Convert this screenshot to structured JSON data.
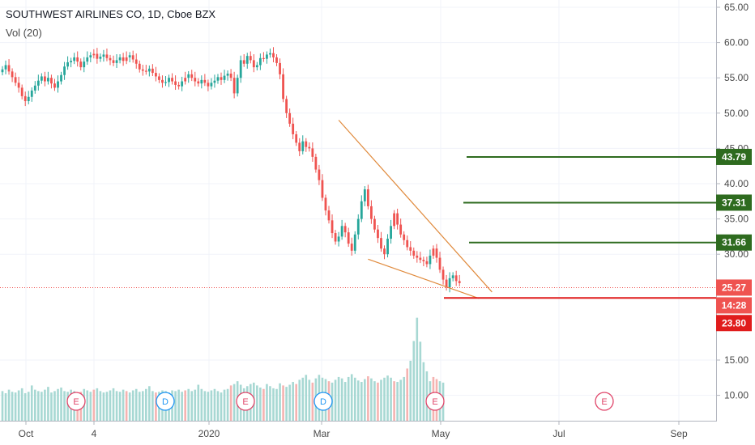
{
  "chart_data": {
    "type": "candlestick",
    "title": "SOUTHWEST AIRLINES CO, 1D, Cboe BZX",
    "subtitle": "Vol (20)",
    "y_ticks": [
      "65.00",
      "60.00",
      "55.00",
      "50.00",
      "45.00",
      "40.00",
      "35.00",
      "30.00",
      "15.00",
      "10.00"
    ],
    "y_tick_values": [
      65,
      60,
      55,
      50,
      45,
      40,
      35,
      30,
      15,
      10
    ],
    "x_ticks": [
      "Oct",
      "4",
      "2020",
      "Mar",
      "May",
      "Jul",
      "Sep"
    ],
    "ylim": [
      6,
      66
    ],
    "price_series": [
      56.2,
      56.8,
      55.9,
      55.1,
      54.3,
      53.6,
      52.4,
      51.7,
      52.3,
      53.2,
      53.9,
      54.6,
      55.2,
      54.5,
      55.0,
      54.2,
      53.6,
      54.5,
      55.4,
      56.6,
      57.2,
      57.4,
      57.9,
      57.3,
      56.5,
      57.3,
      57.9,
      58.2,
      58.4,
      57.7,
      58.0,
      58.3,
      57.8,
      57.5,
      57.1,
      57.5,
      57.9,
      57.4,
      57.9,
      58.2,
      57.6,
      57.0,
      56.2,
      56.0,
      55.9,
      56.3,
      55.7,
      55.2,
      54.7,
      54.3,
      54.4,
      55.0,
      54.5,
      54.0,
      53.8,
      54.5,
      55.0,
      55.5,
      55.0,
      54.5,
      54.2,
      54.7,
      54.3,
      53.8,
      54.3,
      54.6,
      55.1,
      54.7,
      55.3,
      55.6,
      55.0,
      52.8,
      55.0,
      57.5,
      57.0,
      58.1,
      57.5,
      56.5,
      56.8,
      57.8,
      57.7,
      58.3,
      58.5,
      57.9,
      57.1,
      55.5,
      52.0,
      50.0,
      48.5,
      47.0,
      45.8,
      44.6,
      46.0,
      45.2,
      45.0,
      43.8,
      42.0,
      40.5,
      38.0,
      36.2,
      34.8,
      33.0,
      31.8,
      32.5,
      34.0,
      33.1,
      31.5,
      30.5,
      32.8,
      35.0,
      37.5,
      39.2,
      36.8,
      35.0,
      33.5,
      32.3,
      30.8,
      30.0,
      32.2,
      34.0,
      35.8,
      34.2,
      32.8,
      32.0,
      31.0,
      30.5,
      29.8,
      29.5,
      29.2,
      29.0,
      28.6,
      29.8,
      30.8,
      29.5,
      27.8,
      26.4,
      25.3,
      26.6,
      27.0,
      26.2,
      25.9
    ],
    "bearish_price_points": [
      56,
      23,
      24,
      28,
      38,
      47,
      70,
      80,
      86,
      90,
      95,
      100,
      112,
      115,
      120,
      124,
      132,
      133
    ],
    "volume_points": [
      10.6,
      10.3,
      10.8,
      10.5,
      10.4,
      10.7,
      11.0,
      10.3,
      10.5,
      11.4,
      10.8,
      10.6,
      10.5,
      10.8,
      11.2,
      10.4,
      10.6,
      10.9,
      11.1,
      10.6,
      10.5,
      10.8,
      10.6,
      10.4,
      10.5,
      10.9,
      10.7,
      10.5,
      10.8,
      11.0,
      10.6,
      10.4,
      10.5,
      10.7,
      11.0,
      10.6,
      10.5,
      10.8,
      10.6,
      10.4,
      10.7,
      10.9,
      10.5,
      10.6,
      10.9,
      11.3,
      10.6,
      10.4,
      10.5,
      10.7,
      10.6,
      10.4,
      10.7,
      10.6,
      10.8,
      10.5,
      10.7,
      10.9,
      10.6,
      10.8,
      11.5,
      10.9,
      10.6,
      10.5,
      10.7,
      10.9,
      10.6,
      10.4,
      10.8,
      10.9,
      11.4,
      11.6,
      12.0,
      11.5,
      11.0,
      11.3,
      11.6,
      11.8,
      11.4,
      11.1,
      10.9,
      11.6,
      11.3,
      11.0,
      10.9,
      11.7,
      11.4,
      11.2,
      11.5,
      11.9,
      11.6,
      12.2,
      12.5,
      12.9,
      12.2,
      11.8,
      12.4,
      12.9,
      12.5,
      12.3,
      12.0,
      11.8,
      12.2,
      12.6,
      12.4,
      11.9,
      12.6,
      13.0,
      12.5,
      12.1,
      11.9,
      12.3,
      12.7,
      12.4,
      12.0,
      11.8,
      12.2,
      12.5,
      12.8,
      12.5,
      12.0,
      11.9,
      12.2,
      12.6,
      13.8,
      14.9,
      17.7,
      21.0,
      17.6,
      14.7,
      13.4,
      12.0,
      12.6,
      12.3,
      12.0,
      11.8
    ],
    "trendlines": [
      {
        "from": {
          "x_index": 103,
          "y": 49.0
        },
        "to": {
          "x_index": 145,
          "y": 25.1
        }
      },
      {
        "from": {
          "x_index": 112,
          "y": 29.3
        },
        "to": {
          "x_index": 141,
          "y": 24.2
        }
      }
    ],
    "levels": [
      {
        "value": 43.79,
        "label": "43.79",
        "color": "#2e6b1f"
      },
      {
        "value": 37.31,
        "label": "37.31",
        "color": "#2e6b1f"
      },
      {
        "value": 31.66,
        "label": "31.66",
        "color": "#2e6b1f"
      },
      {
        "value": 23.8,
        "label": "23.80",
        "color": "#e01c1c"
      }
    ],
    "last_price": {
      "value": 25.27,
      "label": "25.27",
      "countdown": "14:28"
    },
    "events": [
      {
        "label": "E",
        "color": "#e0466a"
      },
      {
        "label": "D",
        "color": "#2196f3"
      },
      {
        "label": "E",
        "color": "#e0466a"
      },
      {
        "label": "D",
        "color": "#2196f3"
      },
      {
        "label": "E",
        "color": "#e0466a"
      },
      {
        "label": "E",
        "color": "#e0466a"
      }
    ],
    "colors": {
      "up": "#26a69a",
      "down": "#ef5350",
      "vol_up": "#a7d8d3",
      "vol_down": "#f5b3b1",
      "trendline": "#e08a3c",
      "last_price": "#ef5350"
    }
  }
}
